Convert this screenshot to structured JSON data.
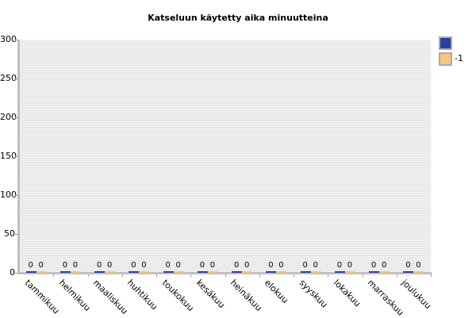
{
  "chart_data": {
    "type": "bar",
    "title": "Katseluun käytetty aika minuutteina",
    "xlabel": "",
    "ylabel": "",
    "ylim": [
      0,
      300
    ],
    "yticks": [
      "300",
      "250",
      "200",
      "150",
      "100",
      "50",
      "0"
    ],
    "categories": [
      "tammikuu",
      "helmikuu",
      "maaliskuu",
      "huhtikuu",
      "toukokuu",
      "kesäkuu",
      "heinäkuu",
      "elokuu",
      "syyskuu",
      "lokakuu",
      "marraskuu",
      "joulukuu"
    ],
    "series": [
      {
        "name": "",
        "color": "#2a3f9e",
        "values": [
          0,
          0,
          0,
          0,
          0,
          0,
          0,
          0,
          0,
          0,
          0,
          0
        ]
      },
      {
        "name": "-1",
        "color": "#f5c77a",
        "values": [
          0,
          0,
          0,
          0,
          0,
          0,
          0,
          0,
          0,
          0,
          0,
          0
        ]
      }
    ],
    "grid": true,
    "legend_position": "right"
  },
  "legend": {
    "items": [
      {
        "label": "",
        "color": "#2a3f9e"
      },
      {
        "label": "-1",
        "color": "#f5c77a"
      }
    ]
  },
  "bar_value_label": "0"
}
